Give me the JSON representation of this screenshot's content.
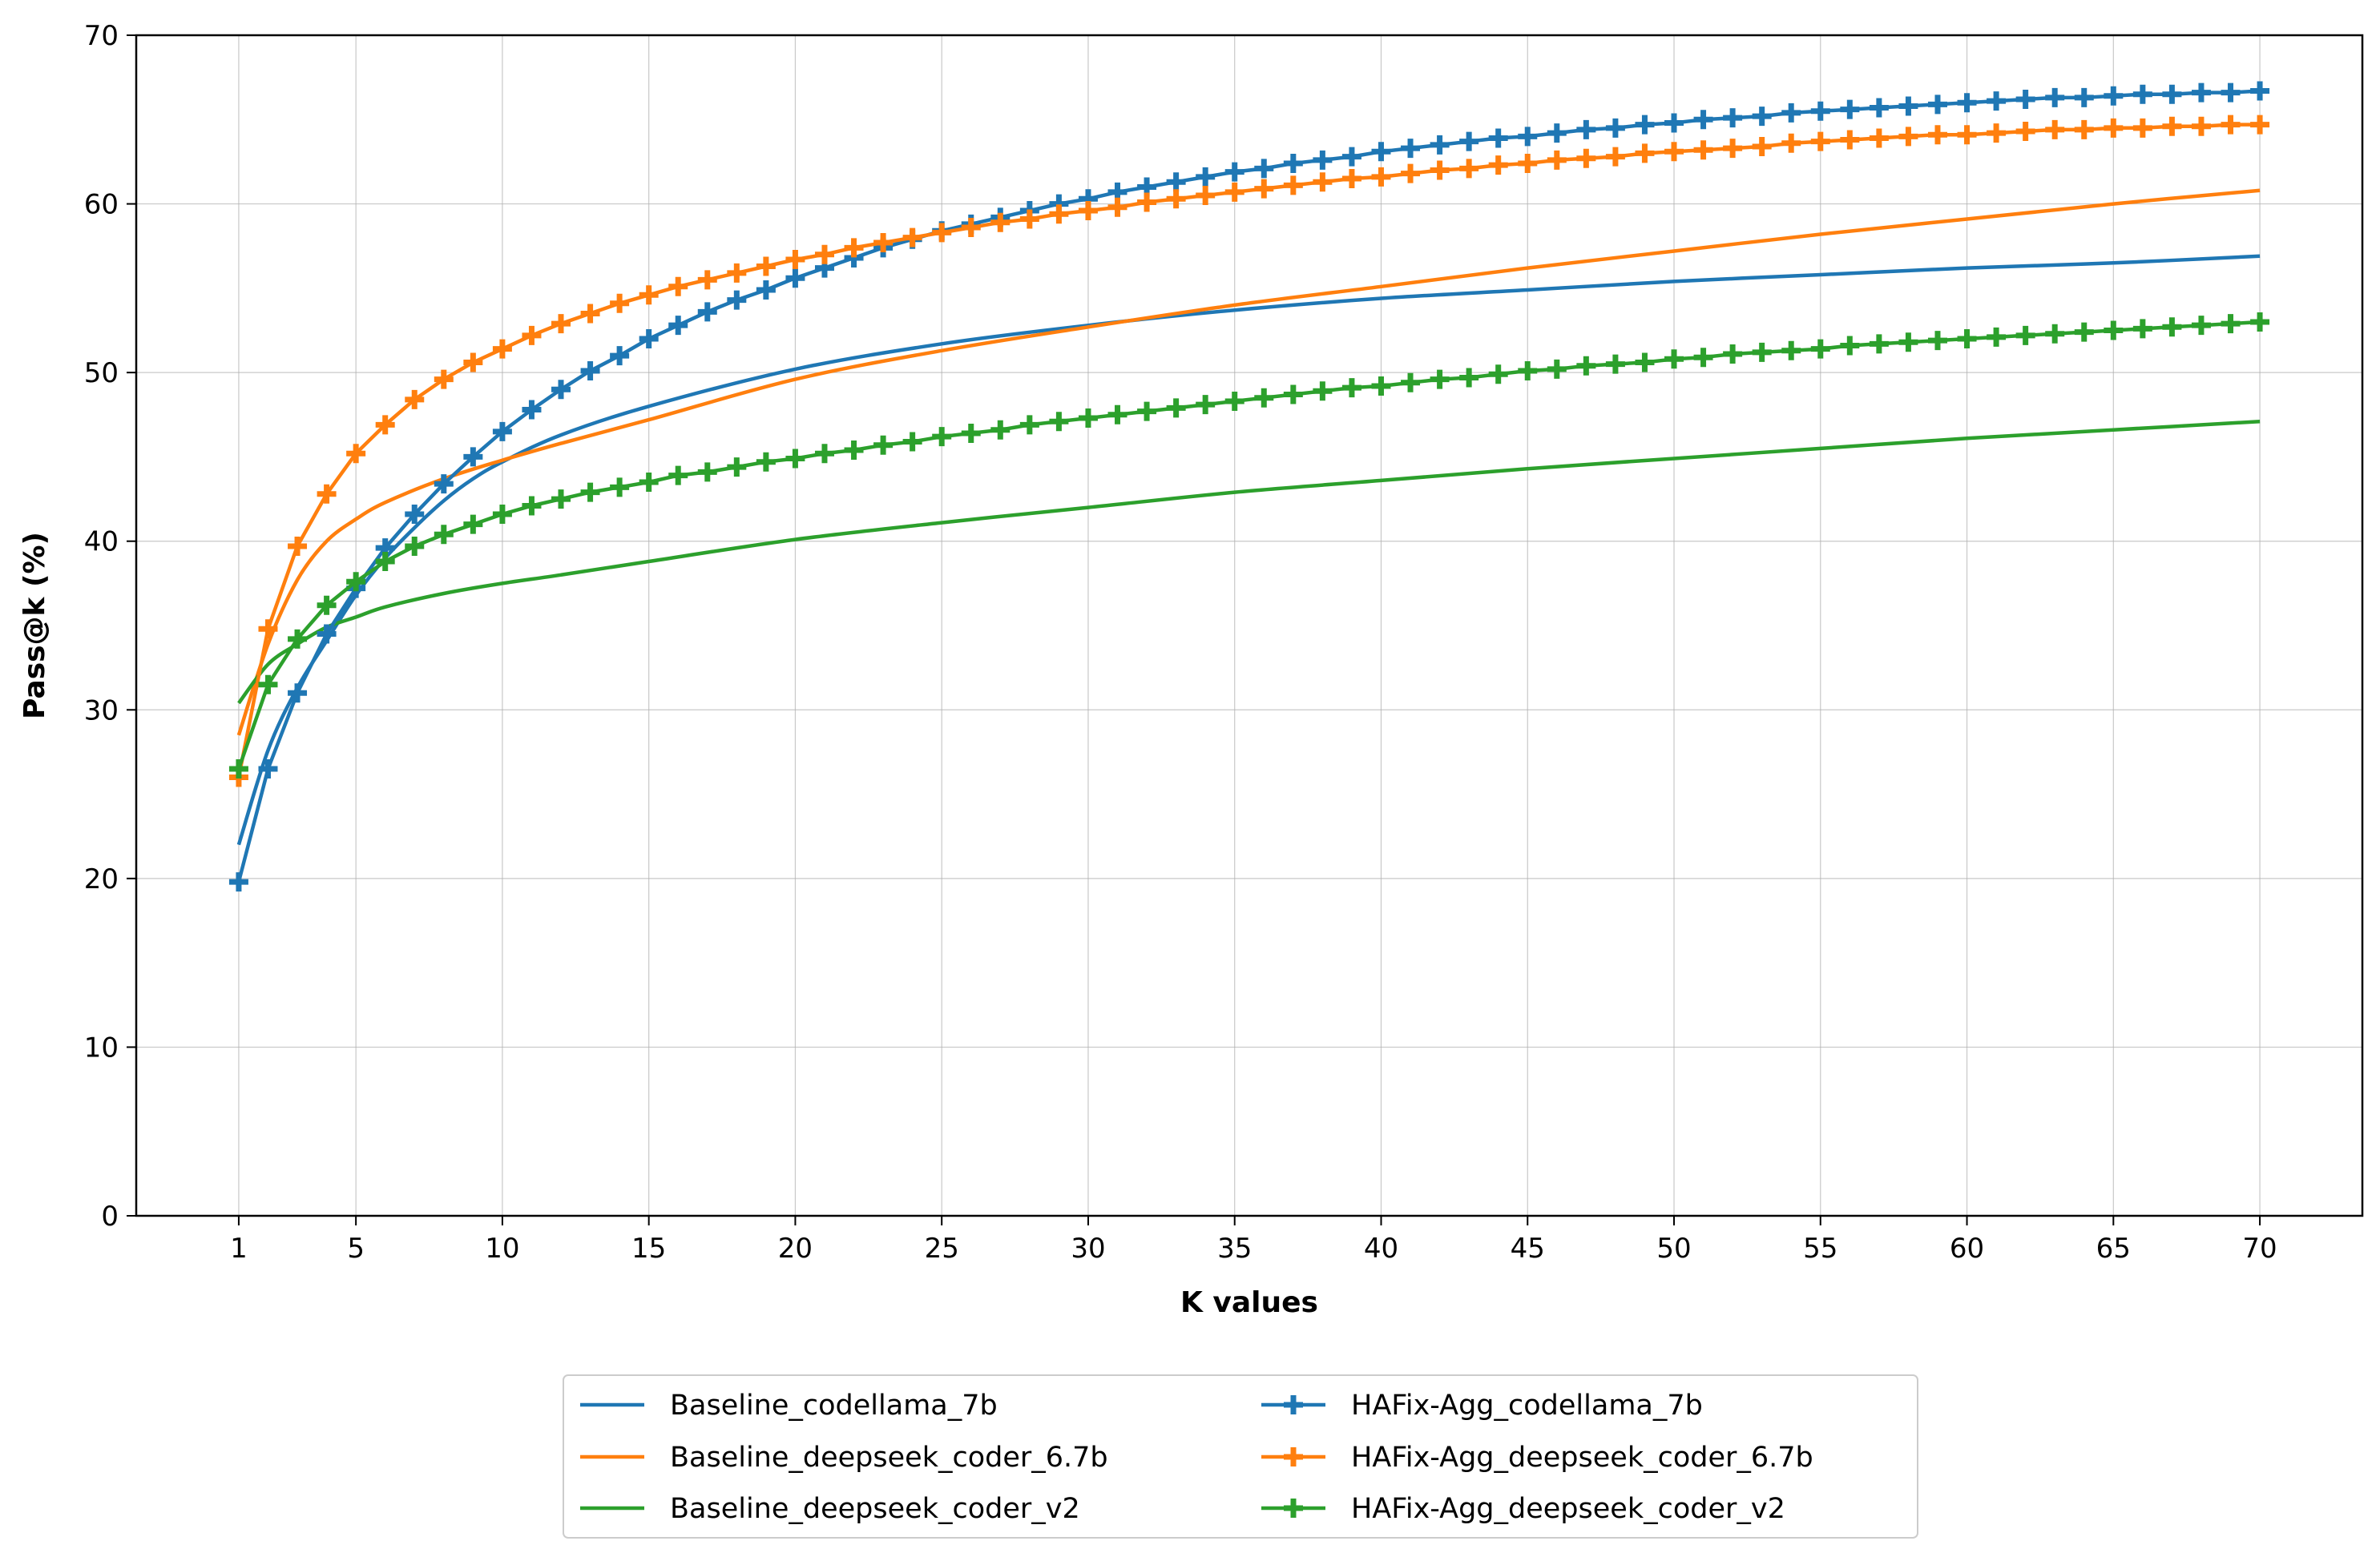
{
  "chart_data": {
    "type": "line",
    "title": "",
    "xlabel": "K values",
    "ylabel": "Pass@k (%)",
    "xlim": [
      -2.5,
      73.5
    ],
    "ylim": [
      0,
      70
    ],
    "xticks": [
      1,
      5,
      10,
      15,
      20,
      25,
      30,
      35,
      40,
      45,
      50,
      55,
      60,
      65,
      70
    ],
    "yticks": [
      0,
      10,
      20,
      30,
      40,
      50,
      60,
      70
    ],
    "grid": true,
    "legend_position": "bottom-center",
    "series": [
      {
        "name": "Baseline_codellama_7b",
        "color": "#1f77b4",
        "marker": "none",
        "points": [
          [
            1,
            22.0
          ],
          [
            2,
            27.6
          ],
          [
            3,
            31.3
          ],
          [
            4,
            34.1
          ],
          [
            5,
            36.8
          ],
          [
            6,
            39.0
          ],
          [
            7,
            40.8
          ],
          [
            8,
            42.4
          ],
          [
            9,
            43.7
          ],
          [
            10,
            44.7
          ],
          [
            12,
            46.3
          ],
          [
            15,
            48.0
          ],
          [
            20,
            50.2
          ],
          [
            25,
            51.7
          ],
          [
            30,
            52.8
          ],
          [
            35,
            53.7
          ],
          [
            40,
            54.4
          ],
          [
            45,
            54.9
          ],
          [
            50,
            55.4
          ],
          [
            55,
            55.8
          ],
          [
            60,
            56.2
          ],
          [
            65,
            56.5
          ],
          [
            70,
            56.9
          ]
        ]
      },
      {
        "name": "Baseline_deepseek_coder_6.7b",
        "color": "#ff7f0e",
        "marker": "none",
        "points": [
          [
            1,
            28.5
          ],
          [
            2,
            33.9
          ],
          [
            3,
            37.7
          ],
          [
            4,
            40.0
          ],
          [
            5,
            41.3
          ],
          [
            6,
            42.3
          ],
          [
            8,
            43.7
          ],
          [
            10,
            44.8
          ],
          [
            12,
            45.8
          ],
          [
            15,
            47.2
          ],
          [
            20,
            49.6
          ],
          [
            25,
            51.3
          ],
          [
            30,
            52.7
          ],
          [
            35,
            54.0
          ],
          [
            40,
            55.1
          ],
          [
            45,
            56.2
          ],
          [
            50,
            57.2
          ],
          [
            55,
            58.2
          ],
          [
            60,
            59.1
          ],
          [
            65,
            60.0
          ],
          [
            70,
            60.8
          ]
        ]
      },
      {
        "name": "Baseline_deepseek_coder_v2",
        "color": "#2ca02c",
        "marker": "none",
        "points": [
          [
            1,
            30.4
          ],
          [
            2,
            32.7
          ],
          [
            3,
            33.9
          ],
          [
            4,
            34.9
          ],
          [
            5,
            35.5
          ],
          [
            6,
            36.1
          ],
          [
            8,
            36.9
          ],
          [
            10,
            37.5
          ],
          [
            12,
            38.0
          ],
          [
            15,
            38.8
          ],
          [
            20,
            40.1
          ],
          [
            25,
            41.1
          ],
          [
            30,
            42.0
          ],
          [
            35,
            42.9
          ],
          [
            40,
            43.6
          ],
          [
            45,
            44.3
          ],
          [
            50,
            44.9
          ],
          [
            55,
            45.5
          ],
          [
            60,
            46.1
          ],
          [
            65,
            46.6
          ],
          [
            70,
            47.1
          ]
        ]
      },
      {
        "name": "HAFix-Agg_codellama_7b",
        "color": "#1f77b4",
        "marker": "plus",
        "points": [
          [
            1,
            19.8
          ],
          [
            2,
            26.5
          ],
          [
            3,
            31.0
          ],
          [
            4,
            34.5
          ],
          [
            5,
            37.2
          ],
          [
            6,
            39.6
          ],
          [
            7,
            41.6
          ],
          [
            8,
            43.4
          ],
          [
            9,
            45.0
          ],
          [
            10,
            46.5
          ],
          [
            11,
            47.8
          ],
          [
            12,
            49.0
          ],
          [
            13,
            50.1
          ],
          [
            14,
            51.0
          ],
          [
            15,
            52.0
          ],
          [
            16,
            52.8
          ],
          [
            17,
            53.6
          ],
          [
            18,
            54.3
          ],
          [
            19,
            54.9
          ],
          [
            20,
            55.6
          ],
          [
            21,
            56.2
          ],
          [
            22,
            56.8
          ],
          [
            23,
            57.4
          ],
          [
            24,
            57.9
          ],
          [
            25,
            58.4
          ],
          [
            26,
            58.8
          ],
          [
            27,
            59.2
          ],
          [
            28,
            59.6
          ],
          [
            29,
            60.0
          ],
          [
            30,
            60.3
          ],
          [
            31,
            60.7
          ],
          [
            32,
            61.0
          ],
          [
            33,
            61.3
          ],
          [
            34,
            61.6
          ],
          [
            35,
            61.9
          ],
          [
            36,
            62.1
          ],
          [
            37,
            62.4
          ],
          [
            38,
            62.6
          ],
          [
            39,
            62.8
          ],
          [
            40,
            63.1
          ],
          [
            41,
            63.3
          ],
          [
            42,
            63.5
          ],
          [
            43,
            63.7
          ],
          [
            44,
            63.9
          ],
          [
            45,
            64.0
          ],
          [
            46,
            64.2
          ],
          [
            47,
            64.4
          ],
          [
            48,
            64.5
          ],
          [
            49,
            64.7
          ],
          [
            50,
            64.8
          ],
          [
            51,
            65.0
          ],
          [
            52,
            65.1
          ],
          [
            53,
            65.2
          ],
          [
            54,
            65.4
          ],
          [
            55,
            65.5
          ],
          [
            56,
            65.6
          ],
          [
            57,
            65.7
          ],
          [
            58,
            65.8
          ],
          [
            59,
            65.9
          ],
          [
            60,
            66.0
          ],
          [
            61,
            66.1
          ],
          [
            62,
            66.2
          ],
          [
            63,
            66.3
          ],
          [
            64,
            66.3
          ],
          [
            65,
            66.4
          ],
          [
            66,
            66.5
          ],
          [
            67,
            66.5
          ],
          [
            68,
            66.6
          ],
          [
            69,
            66.6
          ],
          [
            70,
            66.7
          ]
        ]
      },
      {
        "name": "HAFix-Agg_deepseek_coder_6.7b",
        "color": "#ff7f0e",
        "marker": "plus",
        "points": [
          [
            1,
            26.0
          ],
          [
            2,
            34.8
          ],
          [
            3,
            39.7
          ],
          [
            4,
            42.8
          ],
          [
            5,
            45.2
          ],
          [
            6,
            46.9
          ],
          [
            7,
            48.4
          ],
          [
            8,
            49.6
          ],
          [
            9,
            50.6
          ],
          [
            10,
            51.4
          ],
          [
            11,
            52.2
          ],
          [
            12,
            52.9
          ],
          [
            13,
            53.5
          ],
          [
            14,
            54.1
          ],
          [
            15,
            54.6
          ],
          [
            16,
            55.1
          ],
          [
            17,
            55.5
          ],
          [
            18,
            55.9
          ],
          [
            19,
            56.3
          ],
          [
            20,
            56.7
          ],
          [
            21,
            57.0
          ],
          [
            22,
            57.4
          ],
          [
            23,
            57.7
          ],
          [
            24,
            58.0
          ],
          [
            25,
            58.3
          ],
          [
            26,
            58.6
          ],
          [
            27,
            58.9
          ],
          [
            28,
            59.1
          ],
          [
            29,
            59.4
          ],
          [
            30,
            59.6
          ],
          [
            31,
            59.8
          ],
          [
            32,
            60.1
          ],
          [
            33,
            60.3
          ],
          [
            34,
            60.5
          ],
          [
            35,
            60.7
          ],
          [
            36,
            60.9
          ],
          [
            37,
            61.1
          ],
          [
            38,
            61.3
          ],
          [
            39,
            61.5
          ],
          [
            40,
            61.6
          ],
          [
            41,
            61.8
          ],
          [
            42,
            62.0
          ],
          [
            43,
            62.1
          ],
          [
            44,
            62.3
          ],
          [
            45,
            62.4
          ],
          [
            46,
            62.6
          ],
          [
            47,
            62.7
          ],
          [
            48,
            62.8
          ],
          [
            49,
            63.0
          ],
          [
            50,
            63.1
          ],
          [
            51,
            63.2
          ],
          [
            52,
            63.3
          ],
          [
            53,
            63.4
          ],
          [
            54,
            63.6
          ],
          [
            55,
            63.7
          ],
          [
            56,
            63.8
          ],
          [
            57,
            63.9
          ],
          [
            58,
            64.0
          ],
          [
            59,
            64.1
          ],
          [
            60,
            64.1
          ],
          [
            61,
            64.2
          ],
          [
            62,
            64.3
          ],
          [
            63,
            64.4
          ],
          [
            64,
            64.4
          ],
          [
            65,
            64.5
          ],
          [
            66,
            64.5
          ],
          [
            67,
            64.6
          ],
          [
            68,
            64.6
          ],
          [
            69,
            64.7
          ],
          [
            70,
            64.7
          ]
        ]
      },
      {
        "name": "HAFix-Agg_deepseek_coder_v2",
        "color": "#2ca02c",
        "marker": "plus",
        "points": [
          [
            1,
            26.5
          ],
          [
            2,
            31.5
          ],
          [
            3,
            34.2
          ],
          [
            4,
            36.2
          ],
          [
            5,
            37.6
          ],
          [
            6,
            38.8
          ],
          [
            7,
            39.7
          ],
          [
            8,
            40.4
          ],
          [
            9,
            41.0
          ],
          [
            10,
            41.6
          ],
          [
            11,
            42.1
          ],
          [
            12,
            42.5
          ],
          [
            13,
            42.9
          ],
          [
            14,
            43.2
          ],
          [
            15,
            43.5
          ],
          [
            16,
            43.9
          ],
          [
            17,
            44.1
          ],
          [
            18,
            44.4
          ],
          [
            19,
            44.7
          ],
          [
            20,
            44.9
          ],
          [
            21,
            45.2
          ],
          [
            22,
            45.4
          ],
          [
            23,
            45.7
          ],
          [
            24,
            45.9
          ],
          [
            25,
            46.2
          ],
          [
            26,
            46.4
          ],
          [
            27,
            46.6
          ],
          [
            28,
            46.9
          ],
          [
            29,
            47.1
          ],
          [
            30,
            47.3
          ],
          [
            31,
            47.5
          ],
          [
            32,
            47.7
          ],
          [
            33,
            47.9
          ],
          [
            34,
            48.1
          ],
          [
            35,
            48.3
          ],
          [
            36,
            48.5
          ],
          [
            37,
            48.7
          ],
          [
            38,
            48.9
          ],
          [
            39,
            49.1
          ],
          [
            40,
            49.2
          ],
          [
            41,
            49.4
          ],
          [
            42,
            49.6
          ],
          [
            43,
            49.7
          ],
          [
            44,
            49.9
          ],
          [
            45,
            50.1
          ],
          [
            46,
            50.2
          ],
          [
            47,
            50.4
          ],
          [
            48,
            50.5
          ],
          [
            49,
            50.6
          ],
          [
            50,
            50.8
          ],
          [
            51,
            50.9
          ],
          [
            52,
            51.1
          ],
          [
            53,
            51.2
          ],
          [
            54,
            51.3
          ],
          [
            55,
            51.4
          ],
          [
            56,
            51.6
          ],
          [
            57,
            51.7
          ],
          [
            58,
            51.8
          ],
          [
            59,
            51.9
          ],
          [
            60,
            52.0
          ],
          [
            61,
            52.1
          ],
          [
            62,
            52.2
          ],
          [
            63,
            52.3
          ],
          [
            64,
            52.4
          ],
          [
            65,
            52.5
          ],
          [
            66,
            52.6
          ],
          [
            67,
            52.7
          ],
          [
            68,
            52.8
          ],
          [
            69,
            52.9
          ],
          [
            70,
            53.0
          ]
        ]
      }
    ]
  }
}
